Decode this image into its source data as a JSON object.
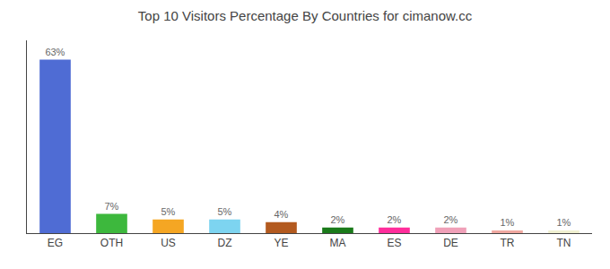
{
  "chart_data": {
    "type": "bar",
    "title": "Top 10 Visitors Percentage By Countries for cimanow.cc",
    "categories": [
      "EG",
      "OTH",
      "US",
      "DZ",
      "YE",
      "MA",
      "ES",
      "DE",
      "TR",
      "TN"
    ],
    "values": [
      63,
      7,
      5,
      5,
      4,
      2,
      2,
      2,
      1,
      1
    ],
    "value_labels": [
      "63%",
      "7%",
      "5%",
      "5%",
      "4%",
      "2%",
      "2%",
      "2%",
      "1%",
      "1%"
    ],
    "colors": [
      "#4f6cd4",
      "#3db83d",
      "#f5a623",
      "#7dd4f0",
      "#b35a1f",
      "#1a7a1a",
      "#ff2d9b",
      "#f0a0b8",
      "#f0a8a0",
      "#f0f0d0"
    ],
    "ylim": [
      0,
      70
    ],
    "data_labels": true,
    "tick_labels": "x",
    "grid": false
  }
}
